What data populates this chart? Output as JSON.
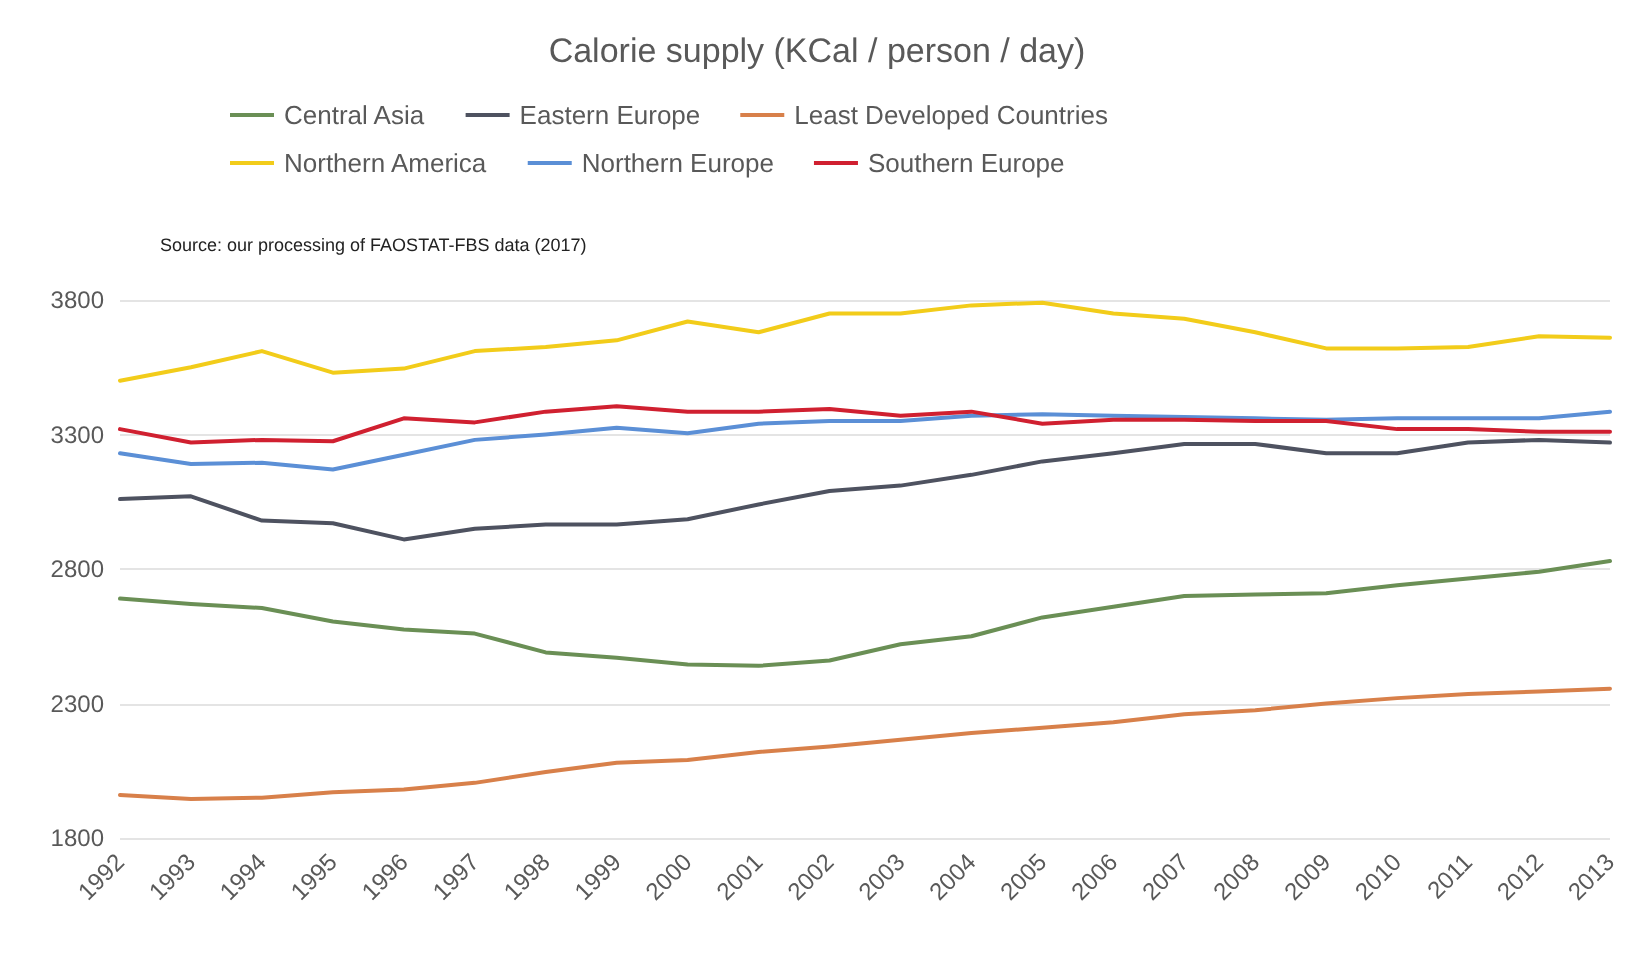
{
  "chart_data": {
    "type": "line",
    "title": "Calorie supply (KCal / person / day)",
    "annotations": [
      "Source: our processing of FAOSTAT-FBS data (2017)"
    ],
    "categories": [
      "1992",
      "1993",
      "1994",
      "1995",
      "1996",
      "1997",
      "1998",
      "1999",
      "2000",
      "2001",
      "2002",
      "2003",
      "2004",
      "2005",
      "2006",
      "2007",
      "2008",
      "2009",
      "2010",
      "2011",
      "2012",
      "2013"
    ],
    "series": [
      {
        "name": "Central Asia",
        "color": "#6a8f55",
        "values": [
          2690,
          2670,
          2655,
          2605,
          2575,
          2560,
          2490,
          2470,
          2445,
          2440,
          2460,
          2520,
          2550,
          2620,
          2660,
          2700,
          2705,
          2710,
          2740,
          2765,
          2790,
          2830
        ]
      },
      {
        "name": "Eastern Europe",
        "color": "#4e5260",
        "values": [
          3060,
          3070,
          2980,
          2970,
          2910,
          2950,
          2965,
          2965,
          2985,
          3040,
          3090,
          3110,
          3150,
          3200,
          3230,
          3265,
          3265,
          3230,
          3230,
          3270,
          3280,
          3270
        ]
      },
      {
        "name": "Least Developed Countries",
        "color": "#d8804a",
        "values": [
          1960,
          1945,
          1950,
          1970,
          1980,
          2005,
          2045,
          2080,
          2090,
          2120,
          2140,
          2165,
          2190,
          2210,
          2230,
          2260,
          2275,
          2300,
          2320,
          2335,
          2345,
          2355
        ]
      },
      {
        "name": "Northern America",
        "color": "#f2cc1a",
        "values": [
          3500,
          3550,
          3610,
          3530,
          3545,
          3610,
          3625,
          3650,
          3720,
          3680,
          3750,
          3750,
          3780,
          3790,
          3750,
          3730,
          3680,
          3620,
          3620,
          3625,
          3665,
          3660
        ]
      },
      {
        "name": "Northern Europe",
        "color": "#5b8fd6",
        "values": [
          3230,
          3190,
          3195,
          3170,
          3225,
          3280,
          3300,
          3325,
          3305,
          3340,
          3350,
          3350,
          3370,
          3375,
          3370,
          3365,
          3360,
          3355,
          3360,
          3360,
          3360,
          3385
        ]
      },
      {
        "name": "Southern Europe",
        "color": "#d02030",
        "values": [
          3320,
          3270,
          3280,
          3275,
          3360,
          3345,
          3385,
          3405,
          3385,
          3385,
          3395,
          3370,
          3385,
          3340,
          3355,
          3355,
          3350,
          3350,
          3320,
          3320,
          3310,
          3310
        ]
      }
    ],
    "ylim": [
      1800,
      3800
    ],
    "yticks": [
      1800,
      2300,
      2800,
      3300,
      3800
    ],
    "grid": "y",
    "legend": "top",
    "marker": "none",
    "line_style": "solid"
  }
}
